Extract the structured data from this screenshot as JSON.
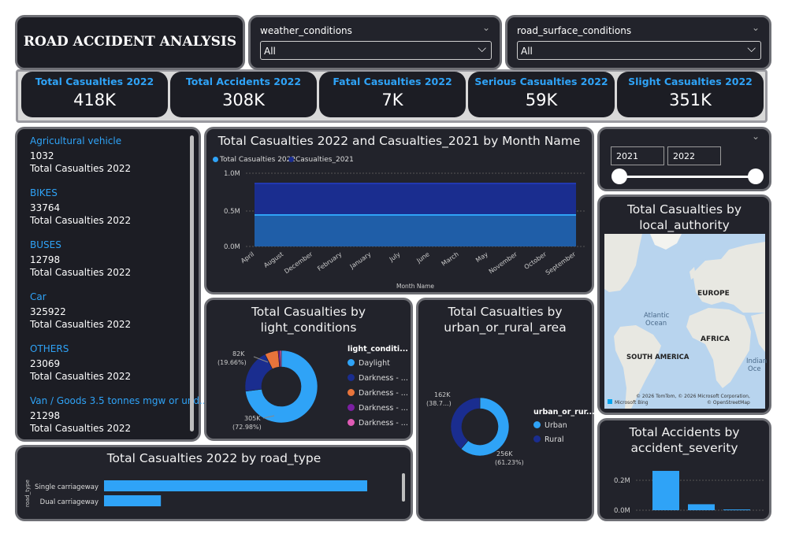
{
  "header": {
    "title": "ROAD ACCIDENT ANALYSIS"
  },
  "filters": {
    "weather": {
      "label": "weather_conditions",
      "value": "All"
    },
    "road_surface": {
      "label": "road_surface_conditions",
      "value": "All"
    }
  },
  "kpis": [
    {
      "label": "Total Casualties 2022",
      "value": "418K"
    },
    {
      "label": "Total Accidents 2022",
      "value": "308K"
    },
    {
      "label": "Fatal Casualties 2022",
      "value": "7K"
    },
    {
      "label": "Serious Casualties 2022",
      "value": "59K"
    },
    {
      "label": "Slight Casualties 2022",
      "value": "351K"
    }
  ],
  "vehicles": [
    {
      "label": "Agricultural vehicle",
      "value": "1032",
      "sub": "Total Casualties 2022"
    },
    {
      "label": "BIKES",
      "value": "33764",
      "sub": "Total Casualties 2022"
    },
    {
      "label": "BUSES",
      "value": "12798",
      "sub": "Total Casualties 2022"
    },
    {
      "label": "Car",
      "value": "325922",
      "sub": "Total Casualties 2022"
    },
    {
      "label": "OTHERS",
      "value": "23069",
      "sub": "Total Casualties 2022"
    },
    {
      "label": "Van / Goods 3.5 tonnes mgw or und...",
      "value": "21298",
      "sub": "Total Casualties 2022"
    }
  ],
  "month_chart": {
    "title": "Total Casualties 2022 and Casualties_2021 by Month Name",
    "legend": [
      "Total Casualties 2022",
      "Casualties_2021"
    ],
    "xlabel": "Month Name",
    "y_ticks": [
      "1.0M",
      "0.5M",
      "0.0M"
    ],
    "months": [
      "April",
      "August",
      "December",
      "February",
      "January",
      "July",
      "June",
      "March",
      "May",
      "November",
      "October",
      "September"
    ]
  },
  "year_slicer": {
    "from": "2021",
    "to": "2022"
  },
  "map": {
    "title": "Total Casualties by local_authority",
    "labels": {
      "europe": "EUROPE",
      "africa": "AFRICA",
      "south_america": "SOUTH AMERICA",
      "atlantic": "Atlantic",
      "ocean": "Ocean",
      "indian": "Indian",
      "indian_ocean": "Oce"
    },
    "attribution": "© 2026 TomTom, © 2026 Microsoft Corporation,",
    "attribution2": "© OpenStreetMap",
    "bing": "Microsoft Bing"
  },
  "light_chart": {
    "title_line1": "Total Casualties by",
    "title_line2": "light_conditions",
    "legend_title": "light_conditi...",
    "legend": [
      "Daylight",
      "Darkness - ...",
      "Darkness - ...",
      "Darkness - ...",
      "Darkness - ..."
    ],
    "label_small": "82K",
    "label_small_pct": "(19.66%)",
    "label_big": "305K",
    "label_big_pct": "(72.98%)"
  },
  "urban_chart": {
    "title_line1": "Total Casualties by",
    "title_line2": "urban_or_rural_area",
    "legend_title": "urban_or_rur...",
    "legend": [
      "Urban",
      "Rural"
    ],
    "label_rural": "162K",
    "label_rural_pct": "(38.7...)",
    "label_urban": "256K",
    "label_urban_pct": "(61.23%)"
  },
  "road_chart": {
    "title": "Total Casualties 2022 by road_type",
    "ylabel": "road_type",
    "categories": [
      "Single carriageway",
      "Dual carriageway"
    ]
  },
  "severity_chart": {
    "title_line1": "Total Accidents by",
    "title_line2": "accident_severity",
    "y_ticks": [
      "0.2M",
      "0.0M"
    ]
  },
  "colors": {
    "accent": "#2fa3f7",
    "dark_blue": "#1a2d8f",
    "orange": "#e8743b",
    "purple": "#7b1fa2",
    "pink": "#e05bb5"
  },
  "chart_data": [
    {
      "type": "area",
      "title": "Total Casualties 2022 and Casualties_2021 by Month Name",
      "categories": [
        "April",
        "August",
        "December",
        "February",
        "January",
        "July",
        "June",
        "March",
        "May",
        "November",
        "October",
        "September"
      ],
      "series": [
        {
          "name": "Total Casualties 2022",
          "values": [
            418000,
            418000,
            418000,
            418000,
            418000,
            418000,
            418000,
            418000,
            418000,
            418000,
            418000,
            418000
          ]
        },
        {
          "name": "Casualties_2021",
          "values": [
            840000,
            840000,
            840000,
            840000,
            840000,
            840000,
            840000,
            840000,
            840000,
            840000,
            840000,
            840000
          ]
        }
      ],
      "ylim": [
        0,
        1000000
      ]
    },
    {
      "type": "pie",
      "title": "Total Casualties by light_conditions",
      "categories": [
        "Daylight",
        "Darkness - ...",
        "Darkness - ...",
        "Darkness - ...",
        "Darkness - ..."
      ],
      "values": [
        305000,
        82000,
        25000,
        3000,
        3000
      ]
    },
    {
      "type": "pie",
      "title": "Total Casualties by urban_or_rural_area",
      "categories": [
        "Urban",
        "Rural"
      ],
      "values": [
        256000,
        162000
      ]
    },
    {
      "type": "bar",
      "title": "Total Casualties 2022 by road_type",
      "categories": [
        "Single carriageway",
        "Dual carriageway"
      ],
      "values": [
        310000,
        67000
      ]
    },
    {
      "type": "bar",
      "title": "Total Accidents by accident_severity",
      "values": [
        263000,
        40000,
        4000
      ],
      "ylim": [
        0,
        0.3
      ]
    }
  ]
}
